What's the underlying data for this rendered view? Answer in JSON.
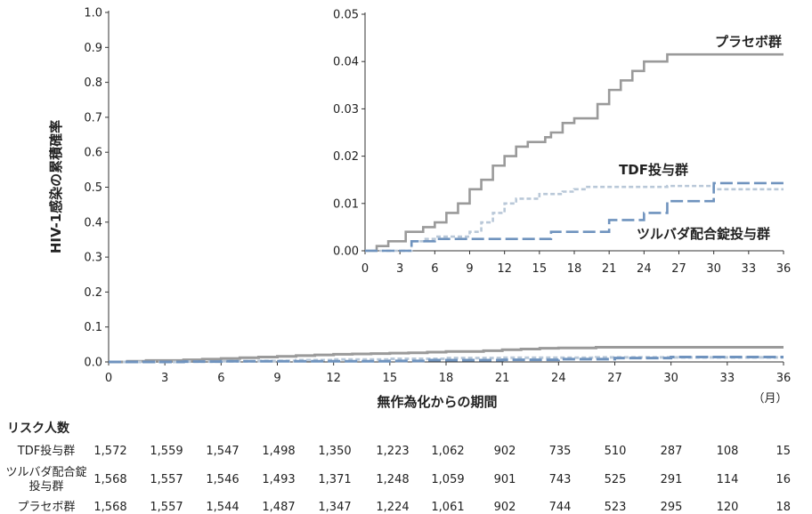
{
  "colors": {
    "placebo": "#9a9a9a",
    "tdf": "#b9c8d8",
    "truvada": "#6f93be",
    "axis": "#333333"
  },
  "chart_data": [
    {
      "type": "line",
      "panel": "main",
      "xlabel": "無作為化からの期間",
      "xunit": "（月）",
      "ylabel": "HIV-1感染の累積確率",
      "xlim": [
        0,
        36
      ],
      "ylim": [
        0,
        1.0
      ],
      "xticks": [
        "0",
        "3",
        "6",
        "9",
        "12",
        "15",
        "18",
        "21",
        "24",
        "27",
        "30",
        "33",
        "36"
      ],
      "yticks": [
        "0.0",
        "0.1",
        "0.2",
        "0.3",
        "0.4",
        "0.5",
        "0.6",
        "0.7",
        "0.8",
        "0.9",
        "1.0"
      ],
      "grid": false,
      "series": [
        {
          "key": "placebo",
          "style": "solid",
          "x": [
            0,
            1,
            2,
            4,
            5,
            6,
            7,
            8,
            9,
            10,
            11,
            12,
            13,
            14,
            15,
            16,
            17,
            18,
            20,
            21,
            22,
            23,
            24,
            26,
            36
          ],
          "y": [
            0,
            0.002,
            0.004,
            0.006,
            0.008,
            0.01,
            0.012,
            0.014,
            0.016,
            0.018,
            0.02,
            0.022,
            0.023,
            0.024,
            0.025,
            0.026,
            0.028,
            0.03,
            0.032,
            0.035,
            0.037,
            0.039,
            0.04,
            0.042,
            0.042
          ]
        },
        {
          "key": "tdf",
          "style": "dotted",
          "x": [
            0,
            4,
            6,
            8,
            10,
            12,
            15,
            18,
            21,
            26,
            36
          ],
          "y": [
            0,
            0.001,
            0.002,
            0.003,
            0.005,
            0.007,
            0.009,
            0.011,
            0.012,
            0.013,
            0.013
          ]
        },
        {
          "key": "truvada",
          "style": "dashed",
          "x": [
            0,
            4,
            6,
            15,
            17,
            21,
            24,
            27,
            30,
            36
          ],
          "y": [
            0,
            0.001,
            0.002,
            0.003,
            0.005,
            0.006,
            0.008,
            0.011,
            0.014,
            0.014
          ]
        }
      ]
    },
    {
      "type": "line",
      "panel": "inset",
      "xlim": [
        0,
        36
      ],
      "ylim": [
        0,
        0.05
      ],
      "xticks": [
        "0",
        "3",
        "6",
        "9",
        "12",
        "15",
        "18",
        "21",
        "24",
        "27",
        "30",
        "33",
        "36"
      ],
      "yticks": [
        "0.00",
        "0.01",
        "0.02",
        "0.03",
        "0.04",
        "0.05"
      ],
      "grid": false,
      "series": [
        {
          "name": "プラセボ群",
          "key": "placebo",
          "style": "solid",
          "x": [
            0,
            1,
            2,
            3.5,
            5,
            6,
            7,
            8,
            9,
            10,
            11,
            12,
            13,
            14,
            15.5,
            16,
            17,
            18,
            20,
            21,
            22,
            23,
            24,
            26,
            36
          ],
          "y": [
            0,
            0.001,
            0.002,
            0.004,
            0.005,
            0.006,
            0.008,
            0.01,
            0.013,
            0.015,
            0.018,
            0.02,
            0.022,
            0.023,
            0.024,
            0.025,
            0.027,
            0.028,
            0.031,
            0.034,
            0.036,
            0.038,
            0.04,
            0.0415,
            0.0415
          ]
        },
        {
          "name": "TDF投与群",
          "key": "tdf",
          "style": "dotted",
          "x": [
            0,
            4,
            5,
            6,
            8,
            9,
            10,
            11,
            12,
            13,
            15,
            17,
            18,
            19,
            21,
            24,
            26,
            30,
            36
          ],
          "y": [
            0,
            0.002,
            0.0025,
            0.003,
            0.003,
            0.004,
            0.006,
            0.008,
            0.01,
            0.011,
            0.012,
            0.0125,
            0.013,
            0.0135,
            0.0135,
            0.0135,
            0.0137,
            0.013,
            0.013
          ]
        },
        {
          "name": "ツルバダ配合錠投与群",
          "key": "truvada",
          "style": "dashed",
          "x": [
            0,
            4,
            6,
            15,
            16,
            21,
            24,
            26,
            30,
            36
          ],
          "y": [
            0,
            0.002,
            0.0025,
            0.0025,
            0.004,
            0.0065,
            0.008,
            0.0105,
            0.0143,
            0.0143
          ]
        }
      ]
    }
  ],
  "risk_table": {
    "title": "リスク人数",
    "rows": [
      {
        "label": "TDF投与群",
        "values": [
          "1,572",
          "1,559",
          "1,547",
          "1,498",
          "1,350",
          "1,223",
          "1,062",
          "902",
          "735",
          "510",
          "287",
          "108",
          "15"
        ]
      },
      {
        "label": "ツルバダ配合錠",
        "label2": "投与群",
        "values": [
          "1,568",
          "1,557",
          "1,546",
          "1,493",
          "1,371",
          "1,248",
          "1,059",
          "901",
          "743",
          "525",
          "291",
          "114",
          "16"
        ]
      },
      {
        "label": "プラセボ群",
        "values": [
          "1,568",
          "1,557",
          "1,544",
          "1,487",
          "1,347",
          "1,224",
          "1,061",
          "902",
          "744",
          "523",
          "295",
          "120",
          "18"
        ]
      }
    ]
  }
}
